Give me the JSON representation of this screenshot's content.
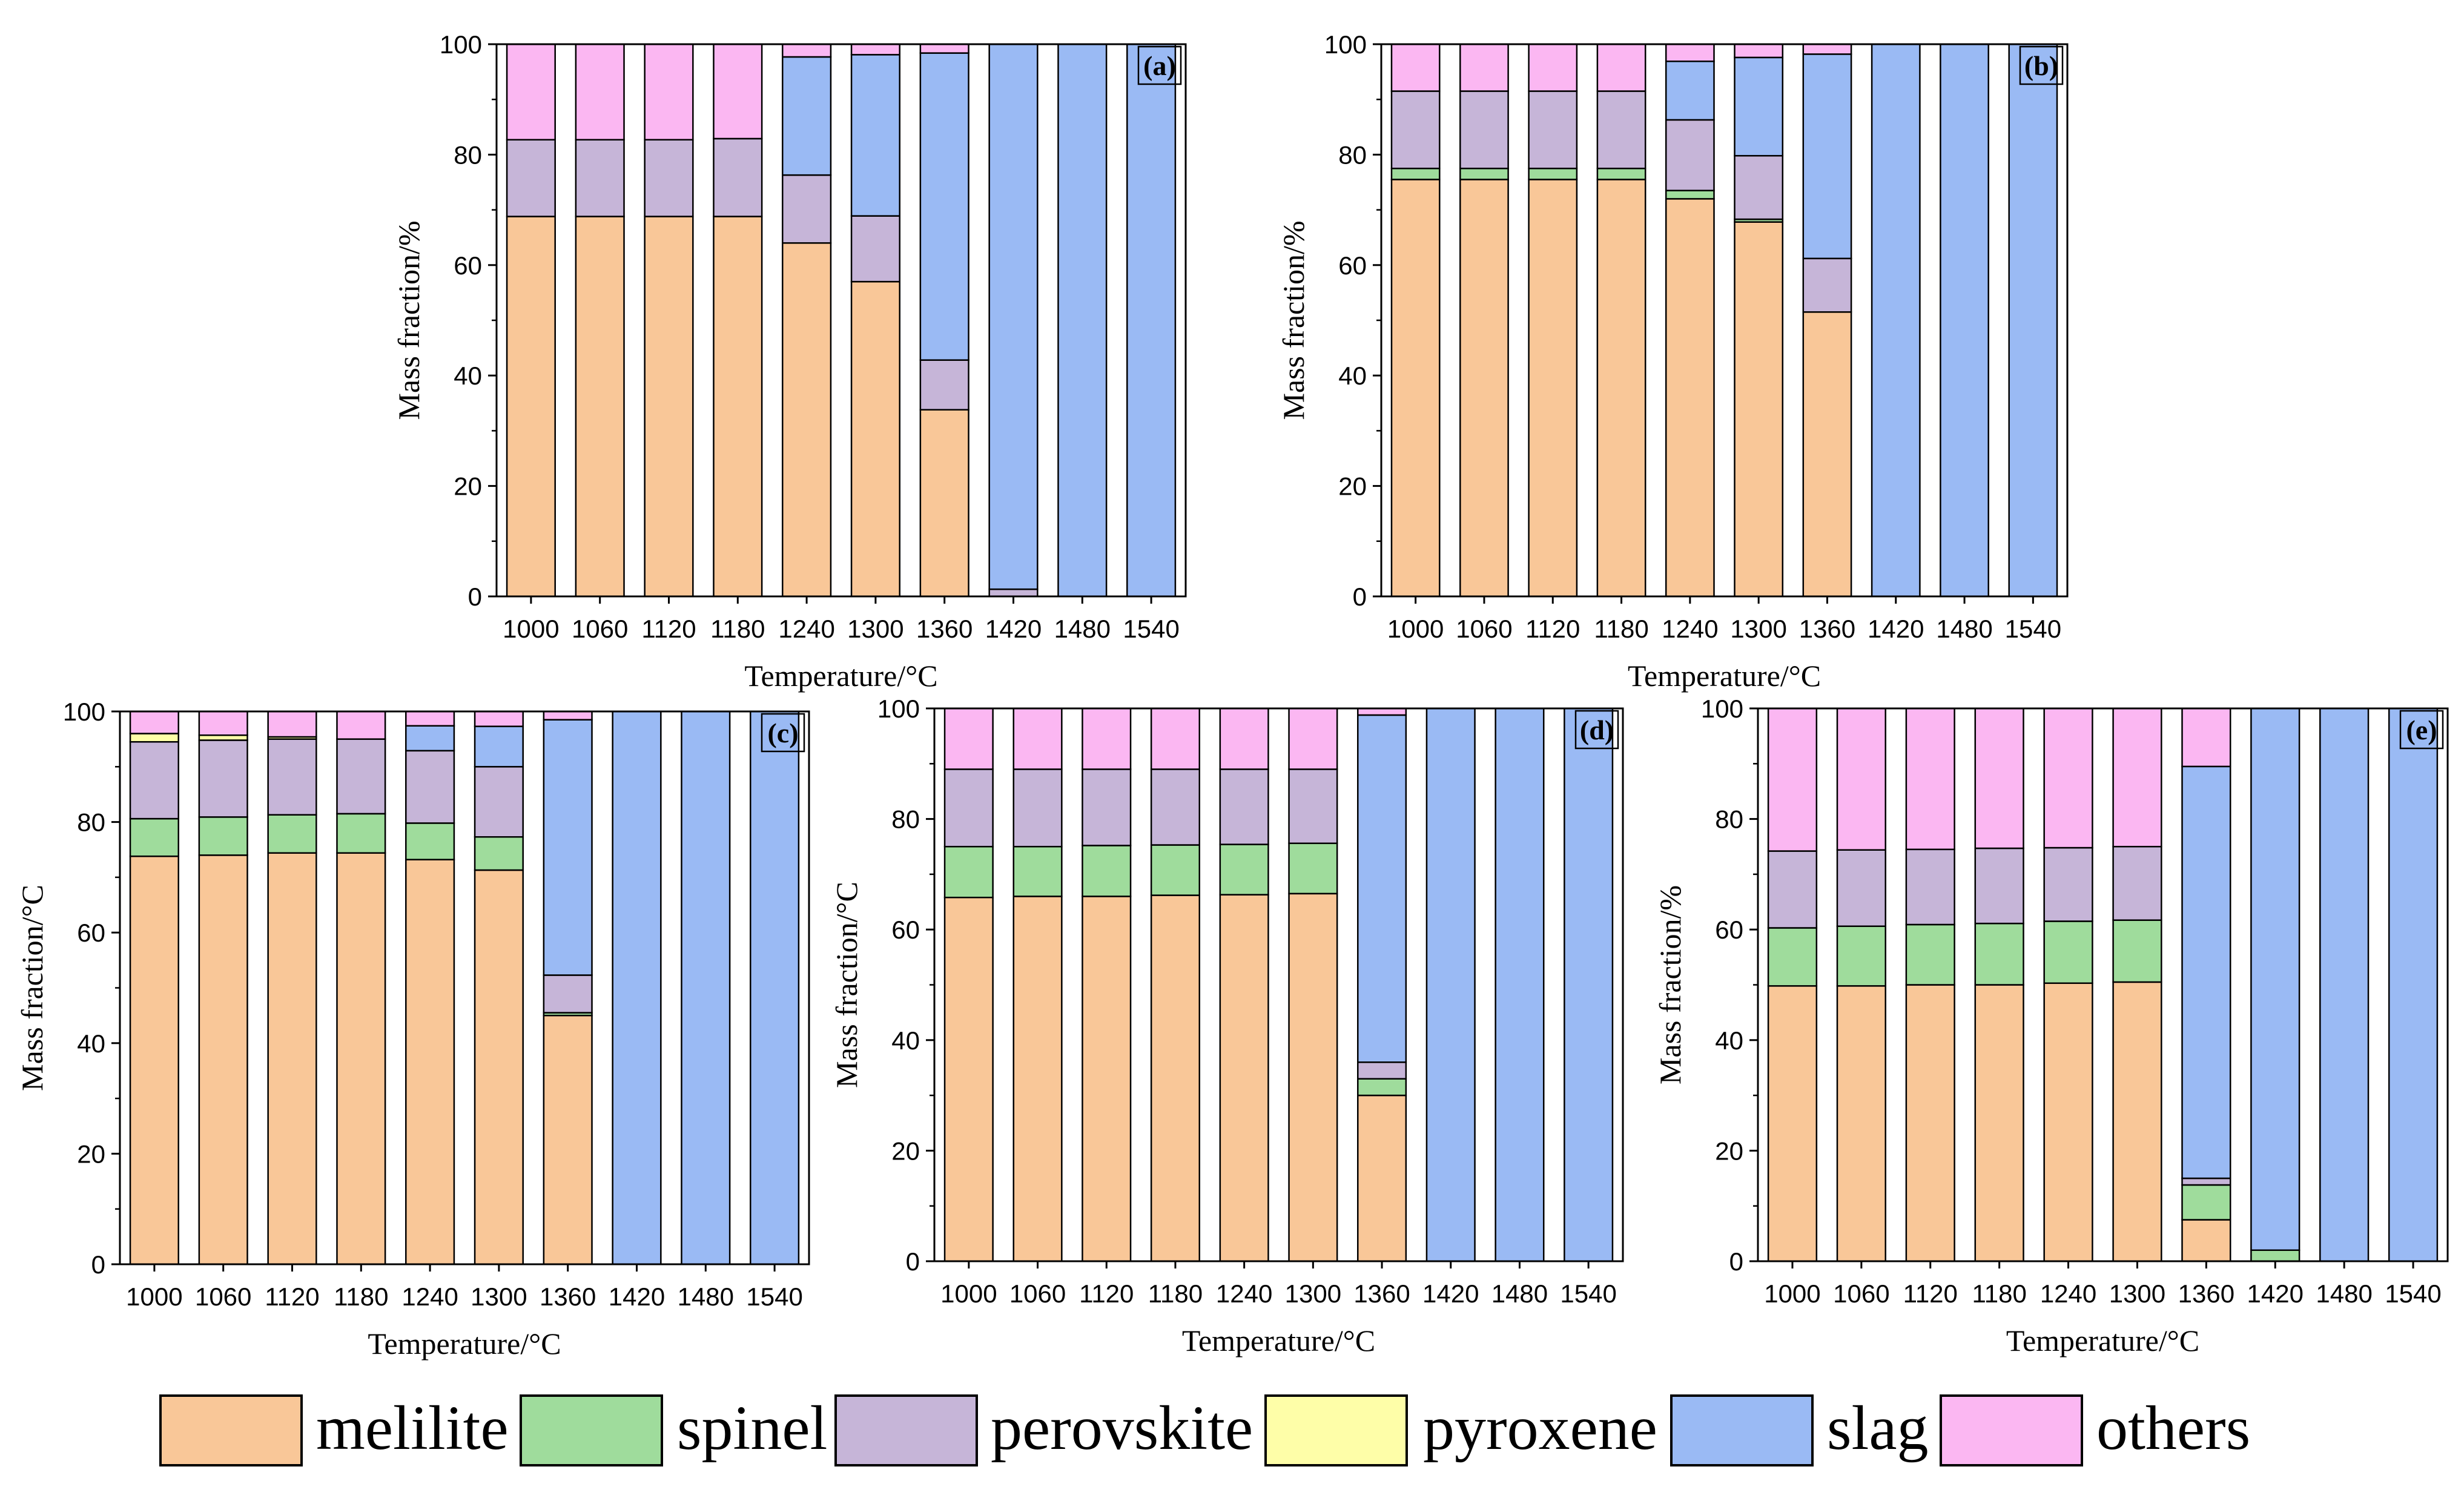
{
  "colors": {
    "melilite": "#F9C798",
    "spinel": "#9FDC9C",
    "perovskite": "#C6B5D8",
    "pyroxene": "#FEFEA8",
    "slag": "#9ABAF4",
    "others": "#FBB7F2"
  },
  "legend": [
    {
      "key": "melilite",
      "label": "melilite"
    },
    {
      "key": "spinel",
      "label": "spinel"
    },
    {
      "key": "perovskite",
      "label": "perovskite"
    },
    {
      "key": "pyroxene",
      "label": "pyroxene"
    },
    {
      "key": "slag",
      "label": "slag"
    },
    {
      "key": "others",
      "label": "others"
    }
  ],
  "chart_data": [
    {
      "type": "bar",
      "stacked": true,
      "panel_label": "(a)",
      "xlabel": "Temperature/°C",
      "ylabel": "Mass fraction/%",
      "ylim": [
        0,
        100
      ],
      "yticks": [
        "0",
        "20",
        "40",
        "60",
        "80",
        "100"
      ],
      "categories": [
        "1000",
        "1060",
        "1120",
        "1180",
        "1240",
        "1300",
        "1360",
        "1420",
        "1480",
        "1540"
      ],
      "series": [
        {
          "name": "melilite",
          "values": [
            68.8,
            68.8,
            68.8,
            68.8,
            64,
            57,
            33.8,
            0,
            0,
            0
          ]
        },
        {
          "name": "spinel",
          "values": [
            0,
            0,
            0,
            0,
            0,
            0,
            0,
            0,
            0,
            0
          ]
        },
        {
          "name": "perovskite",
          "values": [
            13.9,
            13.9,
            13.9,
            14.1,
            12.3,
            11.9,
            9,
            1.3,
            0,
            0
          ]
        },
        {
          "name": "pyroxene",
          "values": [
            0,
            0,
            0,
            0,
            0,
            0,
            0,
            0,
            0,
            0
          ]
        },
        {
          "name": "slag",
          "values": [
            0,
            0,
            0,
            0,
            21.4,
            29.2,
            55.6,
            98.7,
            100,
            100
          ]
        },
        {
          "name": "others",
          "values": [
            17.3,
            17.3,
            17.3,
            17.1,
            2.3,
            1.9,
            1.6,
            0,
            0,
            0
          ]
        }
      ]
    },
    {
      "type": "bar",
      "stacked": true,
      "panel_label": "(b)",
      "xlabel": "Temperature/°C",
      "ylabel": "Mass fraction/%",
      "ylim": [
        0,
        100
      ],
      "yticks": [
        "0",
        "20",
        "40",
        "60",
        "80",
        "100"
      ],
      "categories": [
        "1000",
        "1060",
        "1120",
        "1180",
        "1240",
        "1300",
        "1360",
        "1420",
        "1480",
        "1540"
      ],
      "series": [
        {
          "name": "melilite",
          "values": [
            75.5,
            75.5,
            75.5,
            75.5,
            72,
            67.8,
            51.5,
            0,
            0,
            0
          ]
        },
        {
          "name": "spinel",
          "values": [
            2,
            2,
            2,
            2,
            1.5,
            0.5,
            0,
            0,
            0,
            0
          ]
        },
        {
          "name": "perovskite",
          "values": [
            14,
            14,
            14,
            14,
            12.8,
            11.5,
            9.7,
            0,
            0,
            0
          ]
        },
        {
          "name": "pyroxene",
          "values": [
            0,
            0,
            0,
            0,
            0,
            0,
            0,
            0,
            0,
            0
          ]
        },
        {
          "name": "slag",
          "values": [
            0,
            0,
            0,
            0,
            10.6,
            17.8,
            37,
            100,
            100,
            100
          ]
        },
        {
          "name": "others",
          "values": [
            8.5,
            8.5,
            8.5,
            8.5,
            3.1,
            2.4,
            1.8,
            0,
            0,
            0
          ]
        }
      ]
    },
    {
      "type": "bar",
      "stacked": true,
      "panel_label": "(c)",
      "xlabel": "Temperature/°C",
      "ylabel": "Mass fraction/°C",
      "ylim": [
        0,
        100
      ],
      "yticks": [
        "0",
        "20",
        "40",
        "60",
        "80",
        "100"
      ],
      "categories": [
        "1000",
        "1060",
        "1120",
        "1180",
        "1240",
        "1300",
        "1360",
        "1420",
        "1480",
        "1540"
      ],
      "series": [
        {
          "name": "melilite",
          "values": [
            73.8,
            74,
            74.4,
            74.4,
            73.2,
            71.3,
            45,
            0,
            0,
            0
          ]
        },
        {
          "name": "spinel",
          "values": [
            6.8,
            6.9,
            6.9,
            7.1,
            6.6,
            6,
            0.5,
            0,
            0,
            0
          ]
        },
        {
          "name": "perovskite",
          "values": [
            13.9,
            13.9,
            13.7,
            13.5,
            13.1,
            12.7,
            6.8,
            0,
            0,
            0
          ]
        },
        {
          "name": "pyroxene",
          "values": [
            1.5,
            0.9,
            0.4,
            0,
            0,
            0,
            0,
            0,
            0,
            0
          ]
        },
        {
          "name": "slag",
          "values": [
            0,
            0,
            0,
            0,
            4.5,
            7.3,
            46.2,
            100,
            100,
            100
          ]
        },
        {
          "name": "others",
          "values": [
            4,
            4.3,
            4.6,
            5,
            2.6,
            2.7,
            1.5,
            0,
            0,
            0
          ]
        }
      ]
    },
    {
      "type": "bar",
      "stacked": true,
      "panel_label": "(d)",
      "xlabel": "Temperature/°C",
      "ylabel": "Mass fraction/°C",
      "ylim": [
        0,
        100
      ],
      "yticks": [
        "0",
        "20",
        "40",
        "60",
        "80",
        "100"
      ],
      "categories": [
        "1000",
        "1060",
        "1120",
        "1180",
        "1240",
        "1300",
        "1360",
        "1420",
        "1480",
        "1540"
      ],
      "series": [
        {
          "name": "melilite",
          "values": [
            65.8,
            66,
            66,
            66.2,
            66.3,
            66.5,
            30,
            0,
            0,
            0
          ]
        },
        {
          "name": "spinel",
          "values": [
            9.2,
            9,
            9.2,
            9.1,
            9.1,
            9.1,
            3,
            0,
            0,
            0
          ]
        },
        {
          "name": "perovskite",
          "values": [
            14,
            14,
            13.8,
            13.7,
            13.6,
            13.4,
            3,
            0,
            0,
            0
          ]
        },
        {
          "name": "pyroxene",
          "values": [
            0,
            0,
            0,
            0,
            0,
            0,
            0,
            0,
            0,
            0
          ]
        },
        {
          "name": "slag",
          "values": [
            0,
            0,
            0,
            0,
            0,
            0,
            62.8,
            100,
            100,
            100
          ]
        },
        {
          "name": "others",
          "values": [
            11,
            11,
            11,
            11,
            11,
            11,
            1.2,
            0,
            0,
            0
          ]
        }
      ]
    },
    {
      "type": "bar",
      "stacked": true,
      "panel_label": "(e)",
      "xlabel": "Temperature/°C",
      "ylabel": "Mass fraction/%",
      "ylim": [
        0,
        100
      ],
      "yticks": [
        "0",
        "20",
        "40",
        "60",
        "80",
        "100"
      ],
      "categories": [
        "1000",
        "1060",
        "1120",
        "1180",
        "1240",
        "1300",
        "1360",
        "1420",
        "1480",
        "1540"
      ],
      "series": [
        {
          "name": "melilite",
          "values": [
            49.8,
            49.8,
            50,
            50,
            50.3,
            50.5,
            7.5,
            0,
            0,
            0
          ]
        },
        {
          "name": "spinel",
          "values": [
            10.5,
            10.8,
            10.9,
            11.1,
            11.2,
            11.2,
            6.3,
            2,
            0,
            0
          ]
        },
        {
          "name": "perovskite",
          "values": [
            13.9,
            13.8,
            13.6,
            13.6,
            13.3,
            13.3,
            1.2,
            0,
            0,
            0
          ]
        },
        {
          "name": "pyroxene",
          "values": [
            0,
            0,
            0,
            0,
            0,
            0,
            0,
            0,
            0,
            0
          ]
        },
        {
          "name": "slag",
          "values": [
            0,
            0,
            0,
            0,
            0,
            0,
            74.5,
            98,
            100,
            100
          ]
        },
        {
          "name": "others",
          "values": [
            25.8,
            25.6,
            25.5,
            25.3,
            25.2,
            25,
            10.5,
            0,
            0,
            0
          ]
        }
      ]
    }
  ]
}
